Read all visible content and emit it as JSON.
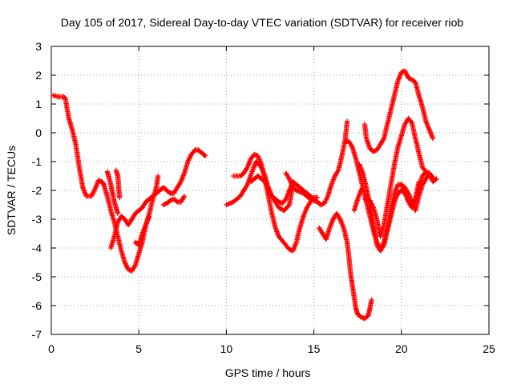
{
  "chart_data": {
    "type": "scatter",
    "title": "Day 105 of 2017, Sidereal Day-to-day VTEC variation (SDTVAR) for receiver riob",
    "xlabel": "GPS time / hours",
    "ylabel": "SDTVAR / TECUs",
    "xlim": [
      0,
      25
    ],
    "ylim": [
      -7,
      3
    ],
    "xticks": [
      "0",
      "5",
      "10",
      "15",
      "20",
      "25"
    ],
    "yticks": [
      "-7",
      "-6",
      "-5",
      "-4",
      "-3",
      "-2",
      "-1",
      "0",
      "1",
      "2",
      "3"
    ],
    "grid": true,
    "marker": "+",
    "color": "#ff0000",
    "series": [
      {
        "points": [
          [
            0.1,
            1.3
          ],
          [
            0.4,
            1.25
          ],
          [
            0.7,
            1.25
          ],
          [
            0.8,
            1.2
          ],
          [
            1.0,
            0.5
          ],
          [
            1.2,
            0.1
          ],
          [
            1.4,
            -0.4
          ],
          [
            1.6,
            -1.2
          ],
          [
            1.8,
            -1.9
          ],
          [
            2.0,
            -2.2
          ],
          [
            2.3,
            -2.2
          ],
          [
            2.5,
            -1.95
          ],
          [
            2.7,
            -1.65
          ],
          [
            2.9,
            -1.7
          ],
          [
            3.0,
            -1.8
          ],
          [
            3.2,
            -2.2
          ],
          [
            3.4,
            -2.7
          ],
          [
            3.6,
            -3.1
          ],
          [
            3.8,
            -3.6
          ],
          [
            4.0,
            -4.1
          ],
          [
            4.2,
            -4.5
          ],
          [
            4.4,
            -4.75
          ],
          [
            4.6,
            -4.8
          ],
          [
            4.8,
            -4.6
          ],
          [
            5.0,
            -4.2
          ],
          [
            5.2,
            -3.8
          ],
          [
            5.4,
            -3.2
          ],
          [
            5.6,
            -2.8
          ],
          [
            5.8,
            -2.3
          ],
          [
            6.0,
            -1.9
          ],
          [
            6.1,
            -1.5
          ]
        ]
      },
      {
        "points": [
          [
            3.4,
            -4.0
          ],
          [
            3.6,
            -3.6
          ],
          [
            3.8,
            -3.1
          ],
          [
            4.0,
            -2.9
          ],
          [
            4.2,
            -3.0
          ],
          [
            4.4,
            -3.2
          ],
          [
            4.6,
            -3.0
          ],
          [
            4.8,
            -2.8
          ],
          [
            5.0,
            -2.7
          ],
          [
            5.2,
            -2.6
          ],
          [
            5.4,
            -2.4
          ],
          [
            5.6,
            -2.3
          ],
          [
            5.8,
            -2.2
          ],
          [
            6.0,
            -2.1
          ],
          [
            6.2,
            -2.0
          ],
          [
            6.4,
            -1.9
          ],
          [
            6.6,
            -2.0
          ],
          [
            6.8,
            -2.1
          ],
          [
            7.0,
            -2.1
          ],
          [
            7.2,
            -1.9
          ],
          [
            7.4,
            -1.7
          ],
          [
            7.6,
            -1.4
          ],
          [
            7.8,
            -1.0
          ],
          [
            8.0,
            -0.75
          ],
          [
            8.2,
            -0.6
          ],
          [
            8.4,
            -0.6
          ],
          [
            8.6,
            -0.7
          ],
          [
            8.8,
            -0.8
          ]
        ]
      },
      {
        "points": [
          [
            4.8,
            -3.8
          ],
          [
            5.0,
            -3.9
          ],
          [
            5.2,
            -3.5
          ],
          [
            5.4,
            -3.2
          ],
          [
            5.6,
            -2.9
          ]
        ]
      },
      {
        "points": [
          [
            6.4,
            -2.5
          ],
          [
            6.6,
            -2.45
          ],
          [
            6.8,
            -2.35
          ],
          [
            7.0,
            -2.3
          ],
          [
            7.2,
            -2.4
          ],
          [
            7.4,
            -2.4
          ],
          [
            7.6,
            -2.2
          ]
        ]
      },
      {
        "points": [
          [
            3.2,
            -1.35
          ],
          [
            3.3,
            -1.55
          ],
          [
            3.4,
            -1.8
          ],
          [
            3.5,
            -2.1
          ],
          [
            3.6,
            -2.4
          ],
          [
            3.7,
            -2.6
          ],
          [
            3.8,
            -2.8
          ]
        ]
      },
      {
        "points": [
          [
            3.7,
            -1.3
          ],
          [
            3.8,
            -1.5
          ],
          [
            3.85,
            -1.9
          ],
          [
            3.9,
            -2.25
          ]
        ]
      },
      {
        "points": [
          [
            10.0,
            -2.5
          ],
          [
            10.4,
            -2.4
          ],
          [
            10.8,
            -2.2
          ],
          [
            11.2,
            -1.8
          ],
          [
            11.5,
            -1.3
          ],
          [
            11.7,
            -1.0
          ],
          [
            12.0,
            -1.2
          ],
          [
            12.2,
            -1.5
          ],
          [
            12.4,
            -1.9
          ],
          [
            12.6,
            -2.2
          ],
          [
            12.8,
            -2.3
          ],
          [
            13.0,
            -2.4
          ],
          [
            13.2,
            -2.45
          ],
          [
            13.4,
            -2.3
          ],
          [
            13.6,
            -2.0
          ],
          [
            13.8,
            -1.7
          ],
          [
            14.0,
            -1.8
          ],
          [
            14.2,
            -1.9
          ],
          [
            14.4,
            -2.0
          ],
          [
            14.6,
            -2.1
          ],
          [
            14.8,
            -2.2
          ],
          [
            15.0,
            -2.3
          ],
          [
            15.2,
            -2.4
          ],
          [
            15.4,
            -2.5
          ],
          [
            15.6,
            -2.45
          ],
          [
            15.8,
            -2.2
          ],
          [
            16.0,
            -1.8
          ],
          [
            16.2,
            -1.5
          ],
          [
            16.4,
            -1.3
          ],
          [
            16.6,
            -0.8
          ],
          [
            16.8,
            -0.2
          ],
          [
            16.9,
            0.4
          ]
        ]
      },
      {
        "points": [
          [
            10.4,
            -1.5
          ],
          [
            10.8,
            -1.5
          ],
          [
            11.0,
            -1.4
          ],
          [
            11.2,
            -1.2
          ],
          [
            11.4,
            -0.9
          ],
          [
            11.6,
            -0.75
          ],
          [
            11.8,
            -0.8
          ],
          [
            12.0,
            -1.1
          ],
          [
            12.2,
            -1.6
          ],
          [
            12.4,
            -2.2
          ],
          [
            12.6,
            -2.8
          ],
          [
            12.8,
            -3.3
          ],
          [
            13.0,
            -3.6
          ],
          [
            13.2,
            -3.75
          ],
          [
            13.4,
            -3.9
          ],
          [
            13.6,
            -4.05
          ],
          [
            13.8,
            -4.1
          ],
          [
            14.0,
            -3.8
          ],
          [
            14.2,
            -3.3
          ],
          [
            14.4,
            -2.9
          ],
          [
            14.6,
            -2.6
          ],
          [
            14.8,
            -2.4
          ],
          [
            15.0,
            -2.25
          ],
          [
            15.2,
            -2.25
          ]
        ]
      },
      {
        "points": [
          [
            11.4,
            -1.7
          ],
          [
            11.8,
            -1.5
          ],
          [
            12.2,
            -1.7
          ],
          [
            12.6,
            -2.2
          ],
          [
            13.0,
            -2.6
          ],
          [
            13.3,
            -2.7
          ],
          [
            13.6,
            -2.5
          ],
          [
            13.8,
            -1.8
          ]
        ]
      },
      {
        "points": [
          [
            13.4,
            -1.4
          ],
          [
            13.6,
            -1.6
          ],
          [
            13.8,
            -1.9
          ],
          [
            14.0,
            -2.0
          ],
          [
            14.2,
            -2.05
          ],
          [
            14.4,
            -2.1
          ],
          [
            14.6,
            -2.2
          ],
          [
            14.8,
            -2.3
          ],
          [
            15.0,
            -2.35
          ],
          [
            15.2,
            -2.4
          ]
        ]
      },
      {
        "points": [
          [
            15.3,
            -3.3
          ],
          [
            15.5,
            -3.5
          ],
          [
            15.7,
            -3.7
          ],
          [
            15.9,
            -3.3
          ],
          [
            16.1,
            -3.0
          ],
          [
            16.3,
            -2.8
          ],
          [
            16.5,
            -3.0
          ],
          [
            16.7,
            -3.3
          ],
          [
            16.9,
            -3.8
          ],
          [
            17.0,
            -4.3
          ],
          [
            17.1,
            -4.9
          ],
          [
            17.2,
            -5.3
          ],
          [
            17.3,
            -5.7
          ],
          [
            17.4,
            -6.1
          ],
          [
            17.5,
            -6.3
          ],
          [
            17.7,
            -6.4
          ],
          [
            17.9,
            -6.45
          ],
          [
            18.1,
            -6.35
          ],
          [
            18.2,
            -6.1
          ],
          [
            18.3,
            -5.8
          ]
        ]
      },
      {
        "points": [
          [
            16.8,
            -0.3
          ],
          [
            17.0,
            -0.3
          ],
          [
            17.2,
            -0.5
          ],
          [
            17.4,
            -0.9
          ],
          [
            17.6,
            -1.4
          ],
          [
            17.8,
            -1.9
          ],
          [
            18.0,
            -2.4
          ],
          [
            18.2,
            -2.9
          ],
          [
            18.4,
            -3.4
          ],
          [
            18.6,
            -3.8
          ],
          [
            18.8,
            -4.0
          ],
          [
            19.0,
            -3.8
          ],
          [
            19.2,
            -3.3
          ],
          [
            19.4,
            -2.7
          ],
          [
            19.6,
            -2.1
          ],
          [
            19.8,
            -1.8
          ],
          [
            20.0,
            -1.8
          ],
          [
            20.2,
            -1.9
          ],
          [
            20.4,
            -2.1
          ],
          [
            20.6,
            -2.4
          ],
          [
            20.8,
            -2.7
          ],
          [
            21.0,
            -2.2
          ],
          [
            21.2,
            -1.8
          ],
          [
            21.4,
            -1.6
          ],
          [
            21.6,
            -1.4
          ],
          [
            21.8,
            -1.7
          ],
          [
            22.0,
            -1.6
          ]
        ]
      },
      {
        "points": [
          [
            17.9,
            -2.3
          ],
          [
            18.2,
            -2.35
          ],
          [
            18.4,
            -2.6
          ],
          [
            18.6,
            -3.0
          ],
          [
            18.8,
            -3.6
          ],
          [
            19.0,
            -3.2
          ],
          [
            19.2,
            -2.5
          ],
          [
            19.4,
            -1.8
          ],
          [
            19.6,
            -1.1
          ],
          [
            19.8,
            -0.5
          ],
          [
            20.0,
            -0.1
          ],
          [
            20.2,
            0.3
          ],
          [
            20.4,
            0.5
          ],
          [
            20.6,
            0.35
          ],
          [
            20.8,
            -0.2
          ],
          [
            21.0,
            -0.7
          ],
          [
            21.2,
            -1.2
          ],
          [
            21.4,
            -1.35
          ],
          [
            21.6,
            -1.4
          ],
          [
            21.8,
            -1.55
          ]
        ]
      },
      {
        "points": [
          [
            17.6,
            -1.1
          ],
          [
            17.8,
            -1.4
          ],
          [
            18.0,
            -1.9
          ],
          [
            18.2,
            -2.5
          ],
          [
            18.4,
            -3.2
          ],
          [
            18.6,
            -3.9
          ],
          [
            18.8,
            -4.1
          ],
          [
            19.0,
            -3.9
          ],
          [
            19.2,
            -3.4
          ],
          [
            19.4,
            -2.9
          ],
          [
            19.6,
            -2.4
          ],
          [
            19.8,
            -2.1
          ],
          [
            20.0,
            -2.0
          ],
          [
            20.2,
            -2.1
          ],
          [
            20.4,
            -2.4
          ],
          [
            20.6,
            -2.6
          ],
          [
            20.8,
            -2.3
          ],
          [
            21.0,
            -1.7
          ]
        ]
      },
      {
        "points": [
          [
            17.3,
            -2.7
          ],
          [
            17.5,
            -2.3
          ],
          [
            17.7,
            -2.0
          ],
          [
            17.8,
            -1.9
          ]
        ]
      },
      {
        "points": [
          [
            17.9,
            0.3
          ],
          [
            18.0,
            -0.2
          ],
          [
            18.2,
            -0.55
          ],
          [
            18.4,
            -0.65
          ],
          [
            18.6,
            -0.6
          ],
          [
            18.8,
            -0.4
          ],
          [
            19.0,
            -0.2
          ],
          [
            19.2,
            0.3
          ],
          [
            19.4,
            0.8
          ],
          [
            19.6,
            1.3
          ],
          [
            19.8,
            1.8
          ],
          [
            20.0,
            2.1
          ],
          [
            20.2,
            2.15
          ],
          [
            20.4,
            1.9
          ],
          [
            20.6,
            1.85
          ],
          [
            20.8,
            1.75
          ],
          [
            21.0,
            1.3
          ],
          [
            21.2,
            0.9
          ],
          [
            21.4,
            0.4
          ],
          [
            21.6,
            0.1
          ],
          [
            21.8,
            -0.2
          ]
        ]
      },
      {
        "points": [
          [
            20.0,
            -1.8
          ],
          [
            20.2,
            -2.0
          ],
          [
            20.4,
            -2.3
          ],
          [
            20.6,
            -2.5
          ],
          [
            20.8,
            -2.3
          ],
          [
            21.0,
            -1.9
          ],
          [
            21.2,
            -1.5
          ],
          [
            21.4,
            -1.35
          ],
          [
            21.6,
            -1.5
          ],
          [
            21.8,
            -1.6
          ]
        ]
      }
    ]
  }
}
